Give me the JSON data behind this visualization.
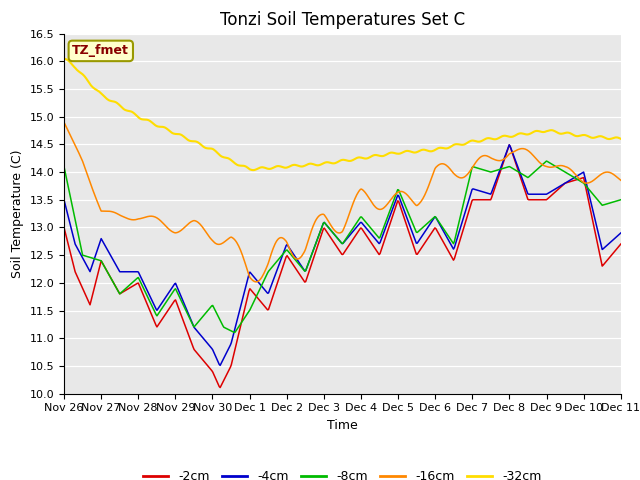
{
  "title": "Tonzi Soil Temperatures Set C",
  "xlabel": "Time",
  "ylabel": "Soil Temperature (C)",
  "legend_label": "TZ_fmet",
  "series_labels": [
    "-2cm",
    "-4cm",
    "-8cm",
    "-16cm",
    "-32cm"
  ],
  "series_colors": [
    "#dd0000",
    "#0000cc",
    "#00bb00",
    "#ff8800",
    "#ffdd00"
  ],
  "ylim": [
    10.0,
    16.5
  ],
  "xtick_labels": [
    "Nov 26",
    "Nov 27",
    "Nov 28",
    "Nov 29",
    "Nov 30",
    "Dec 1",
    "Dec 2",
    "Dec 3",
    "Dec 4",
    "Dec 5",
    "Dec 6",
    "Dec 7",
    "Dec 8",
    "Dec 9",
    "Dec 10",
    "Dec 11"
  ],
  "background_color": "#ffffff",
  "plot_bg_color": "#e8e8e8",
  "title_fontsize": 12,
  "axis_fontsize": 9,
  "tick_fontsize": 8,
  "legend_box_facecolor": "#ffffcc",
  "legend_box_edgecolor": "#999900",
  "legend_text_color": "#880000"
}
